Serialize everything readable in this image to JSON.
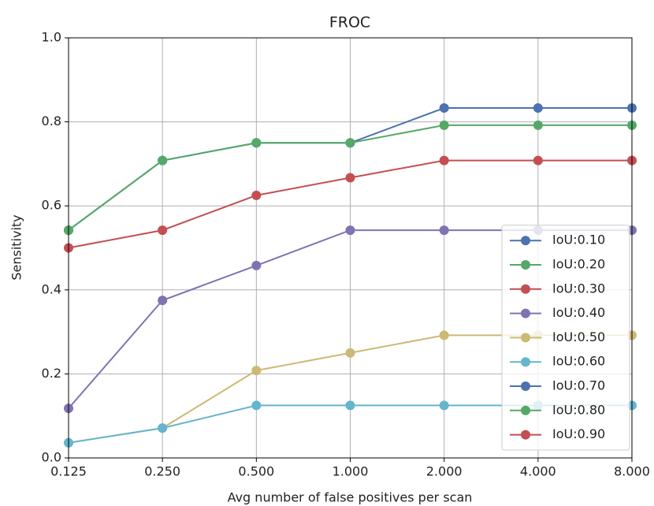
{
  "chart_data": {
    "type": "line",
    "title": "FROC",
    "x_label": "Avg number of false positives per scan",
    "y_label": "Sensitivity",
    "categories": [
      "0.125",
      "0.250",
      "0.500",
      "1.000",
      "2.000",
      "4.000",
      "8.000"
    ],
    "ylim": [
      0,
      1
    ],
    "yticks": [
      {
        "value": 0,
        "label": "0.0"
      },
      0.2,
      0.4,
      0.6,
      0.8,
      {
        "value": 1,
        "label": "1.0"
      }
    ],
    "grid": true,
    "legend": "lower right",
    "series": [
      {
        "name": "IoU:0.10",
        "color": "#4c72b0",
        "values": [
          0.542,
          0.708,
          0.75,
          0.75,
          0.833,
          0.833,
          0.833
        ]
      },
      {
        "name": "IoU:0.20",
        "color": "#55a868",
        "values": [
          0.542,
          0.708,
          0.75,
          0.75,
          0.792,
          0.792,
          0.792
        ]
      },
      {
        "name": "IoU:0.30",
        "color": "#c44e52",
        "values": [
          0.5,
          0.542,
          0.625,
          0.667,
          0.708,
          0.708,
          0.708
        ]
      },
      {
        "name": "IoU:0.40",
        "color": "#8172b2",
        "values": [
          0.118,
          0.375,
          0.458,
          0.542,
          0.542,
          0.542,
          0.542
        ]
      },
      {
        "name": "IoU:0.50",
        "color": "#ccb974",
        "values": [
          0.036,
          0.071,
          0.208,
          0.25,
          0.292,
          0.292,
          0.292
        ]
      },
      {
        "name": "IoU:0.60",
        "color": "#64b5cd",
        "values": [
          0.036,
          0.071,
          0.125,
          0.125,
          0.125,
          0.125,
          0.125
        ]
      },
      {
        "name": "IoU:0.70",
        "color": "#4c72b0",
        "values": [
          null,
          null,
          null,
          null,
          null,
          null,
          null
        ]
      },
      {
        "name": "IoU:0.80",
        "color": "#55a868",
        "values": [
          null,
          null,
          null,
          null,
          null,
          null,
          null
        ]
      },
      {
        "name": "IoU:0.90",
        "color": "#c44e52",
        "values": [
          null,
          null,
          null,
          null,
          null,
          null,
          null
        ]
      }
    ]
  }
}
